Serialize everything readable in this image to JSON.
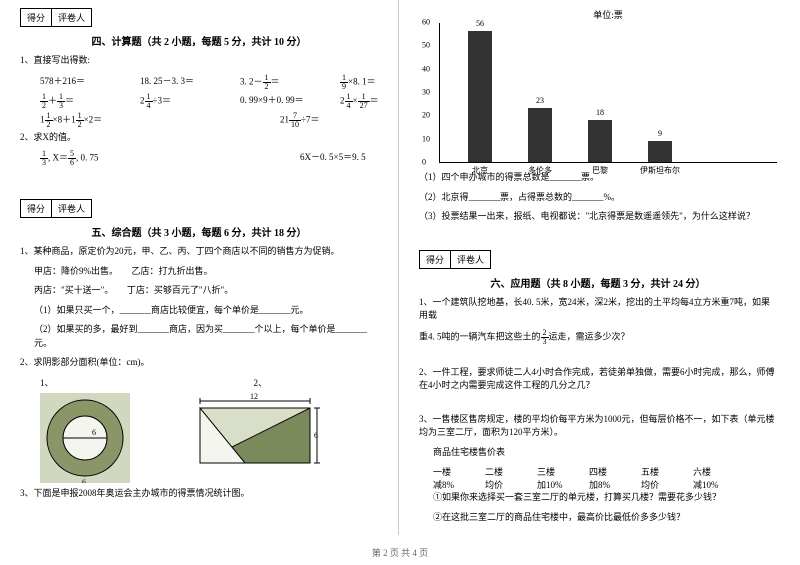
{
  "scorebox": {
    "a": "得分",
    "b": "评卷人"
  },
  "sec4": {
    "title": "四、计算题（共 2 小题，每题 5 分，共计 10 分）",
    "q1": "1、直接写出得数:",
    "r1a": "578＋216＝",
    "r1b": "18. 25－3. 3＝",
    "r1c": "3. 2－",
    "r1c2": "＝",
    "r1d": "×8. 1＝",
    "r2a": "＋",
    "r2a2": "＝",
    "r2b": "2",
    "r2b2": "÷3＝",
    "r2c": "0. 99×9＋0. 99＝",
    "r2d": "2",
    "r2d2": "×",
    "r2d3": "＝",
    "r3a": "1",
    "r3a2": "×8＋1",
    "r3a3": "×2＝",
    "r3b": "21",
    "r3b2": "÷7＝",
    "q2": "2、求X的值。",
    "r4a": ",  X＝",
    "r4a2": ",  0. 75",
    "r4b": "6X－0. 5×5＝9. 5",
    "f12": "1",
    "f12d": "2",
    "f13": "1",
    "f13d": "3",
    "f14": "1",
    "f14d": "4",
    "f19": "1",
    "f19d": "9",
    "f127": "1",
    "f127d": "27",
    "f710": "7",
    "f710d": "10",
    "f56": "5",
    "f56d": "6"
  },
  "sec5": {
    "title": "五、综合题（共 3 小题，每题 6 分，共计 18 分）",
    "q1": "1、某种商品，原定价为20元，甲、乙、丙、丁四个商店以不同的销售方为促销。",
    "q1a": "甲店：降价9%出售。　　乙店：打九折出售。",
    "q1b": "丙店：\"买十送一\"。　　丁店：买够百元了\"八折\"。",
    "q1c": "（1）如果只买一个，_______商店比较便宜，每个单价是_______元。",
    "q1d": "（2）如果买的多，最好到_______商店，因为买_______个以上，每个单价是_______元。",
    "q2": "2、求阴影部分面积(单位：cm)。",
    "q2a": "1、",
    "q2b": "2、",
    "fig1_6a": "6",
    "fig1_6b": "6",
    "fig2_12": "12",
    "fig2_6": "6",
    "q3": "3、下面是申报2008年奥运会主办城市的得票情况统计图。"
  },
  "chart": {
    "unit": "单位:票",
    "ymax": 60,
    "ystep": 10,
    "bars": [
      {
        "label": "北京",
        "value": 56,
        "color": "#333333"
      },
      {
        "label": "多伦多",
        "value": 23,
        "color": "#333333"
      },
      {
        "label": "巴黎",
        "value": 18,
        "color": "#333333"
      },
      {
        "label": "伊斯坦布尔",
        "value": 9,
        "color": "#333333"
      }
    ],
    "sub1": "（1）四个申办城市的得票总数是_______票。",
    "sub2": "（2）北京得_______票，占得票总数的_______%。",
    "sub3": "（3）投票结果一出来，报纸、电视都说：\"北京得票是数遥遥领先\"，为什么这样说？"
  },
  "sec6": {
    "title": "六、应用题（共 8 小题，每题 3 分，共计 24 分）",
    "q1": "1、一个建筑队挖地基，长40. 5米，宽24米，深2米，挖出的土平均每4立方米重7吨，如果用载",
    "q1b": "重4. 5吨的一辆汽车把这些土的",
    "q1c": "运走，需运多少次？",
    "f23n": "2",
    "f23d": "3",
    "q2": "2、一件工程，要求师徒二人4小时合作完成，若徒弟单独做，需要6小时完成，那么，师傅在4小时之内需要完成这件工程的几分之几？",
    "q3": "3、一售楼区售房规定，楼的平均价每平方米为1000元，但每层价格不一，如下表（单元楼均为三室二厅，面积为120平方米）。",
    "q3t": "商品住宅楼售价表",
    "th1": "一楼",
    "th2": "二楼",
    "th3": "三楼",
    "th4": "四楼",
    "th5": "五楼",
    "th6": "六楼",
    "td1": "减8%",
    "td2": "均价",
    "td3": "加10%",
    "td4": "加8%",
    "td5": "均价",
    "td6": "减10%",
    "q3a": "①如果你来选择买一套三室二厅的单元楼，打算买几楼？需要花多少钱？",
    "q3b": "②在这批三室二厅的商品住宅楼中，最高价比最低价多多少钱？"
  },
  "footer": "第 2 页 共 4 页"
}
